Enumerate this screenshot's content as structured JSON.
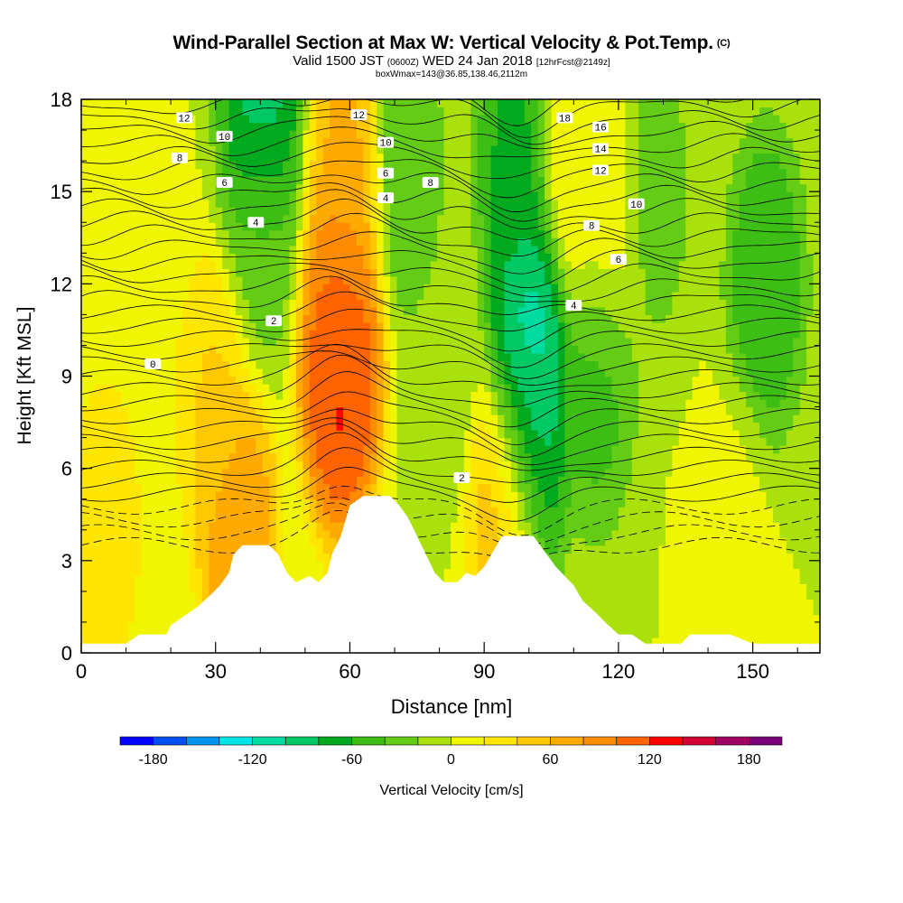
{
  "header": {
    "title": "Wind-Parallel Section at Max W: Vertical Velocity & Pot.Temp.",
    "title_mark": "(C)",
    "valid_pre": "Valid 1500 JST",
    "valid_utc": "(0600Z)",
    "valid_post": "WED 24 Jan 2018",
    "forecast": "[12hrFcst@2149z]",
    "boxinfo": "boxWmax=143@36.85,138.46,2112m"
  },
  "chart_data": {
    "type": "heatmap",
    "title": "Wind-Parallel Section at Max W: Vertical Velocity & Pot.Temp.",
    "xlabel": "Distance [nm]",
    "ylabel": "Height [Kft MSL]",
    "xlim": [
      0,
      165
    ],
    "ylim": [
      0,
      18
    ],
    "x_ticks": [
      0,
      30,
      60,
      90,
      120,
      150
    ],
    "y_ticks": [
      0,
      3,
      6,
      9,
      12,
      15,
      18
    ],
    "colorbar": {
      "label": "Vertical Velocity [cm/s]",
      "tick_values": [
        -180,
        -120,
        -60,
        0,
        60,
        120,
        180
      ],
      "tick_labels": [
        "-180",
        "-120",
        "-60",
        "0",
        "60",
        "120",
        "180"
      ],
      "bins": [
        -200,
        -180,
        -160,
        -140,
        -120,
        -100,
        -80,
        -60,
        -40,
        -20,
        0,
        20,
        40,
        60,
        80,
        100,
        120,
        140,
        160,
        180,
        200
      ],
      "colors": [
        "#0000ff",
        "#0050f0",
        "#0096f0",
        "#00e6e6",
        "#00dca0",
        "#00c864",
        "#00aa1e",
        "#3cbe14",
        "#64cc14",
        "#aae10a",
        "#f0f500",
        "#ffe600",
        "#ffc800",
        "#ffaa00",
        "#ff8c00",
        "#ff6400",
        "#ff0000",
        "#d20032",
        "#a00064",
        "#780078"
      ]
    },
    "vertical_velocity_features": [
      {
        "x": 40,
        "y": 17.5,
        "w": -100
      },
      {
        "x": 40,
        "y": 13.5,
        "w": -30
      },
      {
        "x": 30,
        "y": 8,
        "w": 45
      },
      {
        "x": 35,
        "y": 4,
        "w": 85
      },
      {
        "x": 58,
        "y": 9,
        "w": 140
      },
      {
        "x": 58,
        "y": 11,
        "w": 100
      },
      {
        "x": 60,
        "y": 16,
        "w": 70
      },
      {
        "x": 72,
        "y": 16,
        "w": -40
      },
      {
        "x": 80,
        "y": 10,
        "w": -20
      },
      {
        "x": 95,
        "y": 5,
        "w": 60
      },
      {
        "x": 100,
        "y": 10,
        "w": -120
      },
      {
        "x": 100,
        "y": 7,
        "w": -90
      },
      {
        "x": 97,
        "y": 16,
        "w": -70
      },
      {
        "x": 115,
        "y": 9,
        "w": -50
      },
      {
        "x": 117,
        "y": 14,
        "w": 15
      },
      {
        "x": 110,
        "y": 16,
        "w": 20
      },
      {
        "x": 128,
        "y": 15,
        "w": -30
      },
      {
        "x": 153,
        "y": 12,
        "w": -60
      },
      {
        "x": 145,
        "y": 4,
        "w": 5
      },
      {
        "x": 5,
        "y": 4,
        "w": 35
      },
      {
        "x": 15,
        "y": 12,
        "w": 20
      }
    ],
    "terrain": [
      [
        0,
        0.3
      ],
      [
        10,
        0.3
      ],
      [
        13,
        0.6
      ],
      [
        19,
        0.6
      ],
      [
        20,
        0.9
      ],
      [
        23,
        1.2
      ],
      [
        26,
        1.5
      ],
      [
        29,
        1.9
      ],
      [
        31,
        2.2
      ],
      [
        33,
        2.6
      ],
      [
        34,
        3.2
      ],
      [
        36,
        3.5
      ],
      [
        42,
        3.5
      ],
      [
        44,
        3.2
      ],
      [
        46,
        2.6
      ],
      [
        48,
        2.3
      ],
      [
        51,
        2.5
      ],
      [
        53,
        2.3
      ],
      [
        55,
        2.6
      ],
      [
        56,
        3.2
      ],
      [
        58,
        3.8
      ],
      [
        60,
        4.8
      ],
      [
        63,
        5.1
      ],
      [
        69,
        5.1
      ],
      [
        71,
        4.8
      ],
      [
        73,
        4.4
      ],
      [
        75,
        3.8
      ],
      [
        77,
        3.2
      ],
      [
        79,
        2.6
      ],
      [
        81,
        2.3
      ],
      [
        84,
        2.3
      ],
      [
        86,
        2.6
      ],
      [
        88,
        2.5
      ],
      [
        90,
        2.8
      ],
      [
        92,
        3.3
      ],
      [
        94,
        3.8
      ],
      [
        101,
        3.8
      ],
      [
        104,
        3.2
      ],
      [
        106,
        2.8
      ],
      [
        108,
        2.5
      ],
      [
        110,
        2.2
      ],
      [
        112,
        1.7
      ],
      [
        115,
        1.3
      ],
      [
        117,
        1.0
      ],
      [
        120,
        0.6
      ],
      [
        123,
        0.6
      ],
      [
        126,
        0.3
      ],
      [
        134,
        0.3
      ],
      [
        136,
        0.6
      ],
      [
        145,
        0.6
      ],
      [
        150,
        0.3
      ],
      [
        165,
        0.3
      ]
    ],
    "isentrope_labels": [
      {
        "text": "12",
        "x": 23,
        "y": 17.4
      },
      {
        "text": "10",
        "x": 32,
        "y": 16.8
      },
      {
        "text": "8",
        "x": 22,
        "y": 16.1
      },
      {
        "text": "6",
        "x": 32,
        "y": 15.3
      },
      {
        "text": "4",
        "x": 39,
        "y": 14
      },
      {
        "text": "2",
        "x": 43,
        "y": 10.8
      },
      {
        "text": "0",
        "x": 16,
        "y": 9.4
      },
      {
        "text": "12",
        "x": 62,
        "y": 17.5
      },
      {
        "text": "10",
        "x": 68,
        "y": 16.6
      },
      {
        "text": "6",
        "x": 68,
        "y": 15.6
      },
      {
        "text": "4",
        "x": 68,
        "y": 14.8
      },
      {
        "text": "8",
        "x": 78,
        "y": 15.3
      },
      {
        "text": "2",
        "x": 85,
        "y": 5.7
      },
      {
        "text": "18",
        "x": 108,
        "y": 17.4
      },
      {
        "text": "16",
        "x": 116,
        "y": 17.1
      },
      {
        "text": "14",
        "x": 116,
        "y": 16.4
      },
      {
        "text": "12",
        "x": 116,
        "y": 15.7
      },
      {
        "text": "10",
        "x": 124,
        "y": 14.6
      },
      {
        "text": "8",
        "x": 114,
        "y": 13.9
      },
      {
        "text": "6",
        "x": 120,
        "y": 12.8
      },
      {
        "text": "4",
        "x": 110,
        "y": 11.3
      }
    ]
  }
}
